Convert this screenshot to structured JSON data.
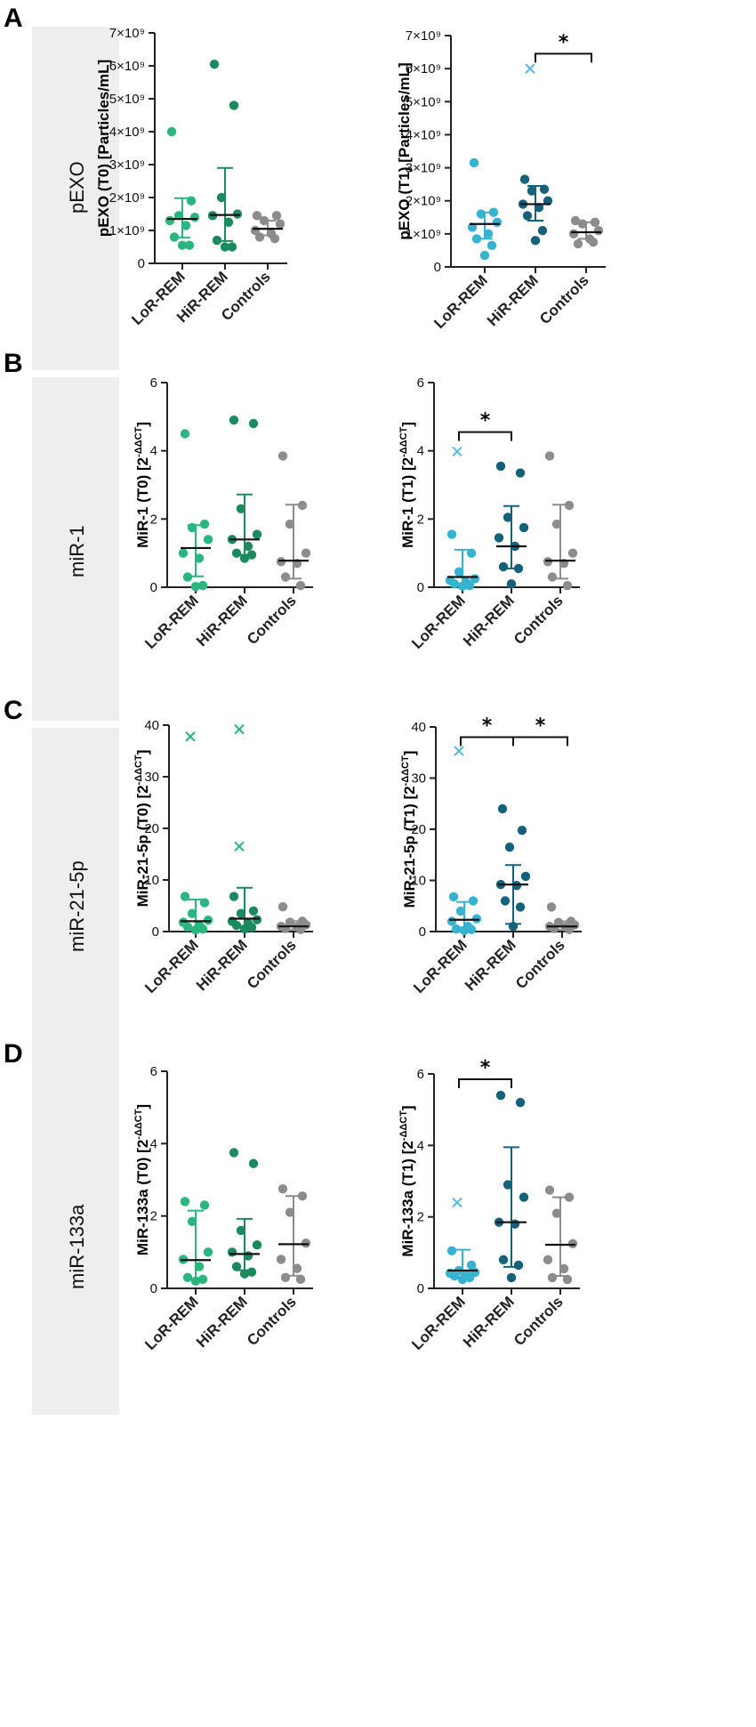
{
  "panels": [
    {
      "letter": "A",
      "row_label": "pEXO"
    },
    {
      "letter": "B",
      "row_label": "miR-1"
    },
    {
      "letter": "C",
      "row_label": "miR-21-5p"
    },
    {
      "letter": "D",
      "row_label": "miR-133a"
    }
  ],
  "colors": {
    "lor_t0": "#2bb67f",
    "hir_t0": "#1c8a5e",
    "lor_t1": "#37b3cf",
    "hir_t1": "#16617a",
    "controls": "#8c8c8c",
    "outlier_t0": "#2bb67f",
    "outlier_t1": "#58b8e0"
  },
  "chart_data": [
    {
      "id": "A-T0",
      "type": "scatter",
      "title": "",
      "ylabel": "pEXO (T0) [Particles/mL]",
      "categories": [
        "LoR-REM",
        "HiR-REM",
        "Controls"
      ],
      "ylim": [
        0,
        7000000000.0
      ],
      "yticks": [
        0,
        1000000000.0,
        2000000000.0,
        3000000000.0,
        4000000000.0,
        5000000000.0,
        6000000000.0,
        7000000000.0
      ],
      "ytick_labels": [
        "0",
        "1×10⁹",
        "2×10⁹",
        "3×10⁹",
        "4×10⁹",
        "5×10⁹",
        "6×10⁹",
        "7×10⁹"
      ],
      "groups": [
        {
          "name": "LoR-REM",
          "color_key": "lor_t0",
          "median": 1350000000.0,
          "q1": 780000000.0,
          "q3": 1980000000.0,
          "points": [
            4000000000.0,
            1900000000.0,
            1450000000.0,
            1400000000.0,
            1300000000.0,
            1150000000.0,
            800000000.0,
            550000000.0,
            550000000.0
          ],
          "outliers": []
        },
        {
          "name": "HiR-REM",
          "color_key": "hir_t0",
          "median": 1470000000.0,
          "q1": 680000000.0,
          "q3": 2900000000.0,
          "points": [
            6050000000.0,
            4800000000.0,
            2000000000.0,
            1500000000.0,
            1450000000.0,
            1250000000.0,
            700000000.0,
            500000000.0,
            500000000.0
          ],
          "outliers": []
        },
        {
          "name": "Controls",
          "color_key": "controls",
          "median": 1050000000.0,
          "q1": 850000000.0,
          "q3": 1300000000.0,
          "points": [
            1450000000.0,
            1450000000.0,
            1300000000.0,
            1200000000.0,
            1000000000.0,
            900000000.0,
            800000000.0,
            750000000.0
          ],
          "outliers": []
        }
      ],
      "significance": []
    },
    {
      "id": "A-T1",
      "type": "scatter",
      "title": "",
      "ylabel": "pEXO (T1) [Particles/mL]",
      "categories": [
        "LoR-REM",
        "HiR-REM",
        "Controls"
      ],
      "ylim": [
        0,
        7000000000.0
      ],
      "yticks": [
        0,
        1000000000.0,
        2000000000.0,
        3000000000.0,
        4000000000.0,
        5000000000.0,
        6000000000.0,
        7000000000.0
      ],
      "ytick_labels": [
        "0",
        "1×10⁹",
        "2×10⁹",
        "3×10⁹",
        "4×10⁹",
        "5×10⁹",
        "6×10⁹",
        "7×10⁹"
      ],
      "groups": [
        {
          "name": "LoR-REM",
          "color_key": "lor_t1",
          "median": 1300000000.0,
          "q1": 850000000.0,
          "q3": 1650000000.0,
          "points": [
            3150000000.0,
            1650000000.0,
            1600000000.0,
            1350000000.0,
            1200000000.0,
            1000000000.0,
            850000000.0,
            650000000.0,
            350000000.0
          ],
          "outliers": []
        },
        {
          "name": "HiR-REM",
          "color_key": "hir_t1",
          "median": 1900000000.0,
          "q1": 1400000000.0,
          "q3": 2450000000.0,
          "points": [
            2650000000.0,
            2350000000.0,
            2300000000.0,
            2000000000.0,
            1900000000.0,
            1800000000.0,
            1550000000.0,
            1100000000.0,
            800000000.0
          ],
          "outliers": [
            {
              "value": 6000000000.0,
              "color_key": "outlier_t1"
            }
          ]
        },
        {
          "name": "Controls",
          "color_key": "controls",
          "median": 1050000000.0,
          "q1": 850000000.0,
          "q3": 1350000000.0,
          "points": [
            1400000000.0,
            1350000000.0,
            1300000000.0,
            1100000000.0,
            1000000000.0,
            850000000.0,
            700000000.0,
            750000000.0
          ],
          "outliers": []
        }
      ],
      "significance": [
        {
          "from": "HiR-REM",
          "to": "Controls",
          "y": 6450000000.0,
          "label": "*"
        }
      ]
    },
    {
      "id": "B-T0",
      "type": "scatter",
      "title": "",
      "ylabel": "MiR-1 (T0) [2",
      "ylabel_sup": "-ΔΔCT",
      "ylabel_end": "]",
      "categories": [
        "LoR-REM",
        "HiR-REM",
        "Controls"
      ],
      "ylim": [
        0,
        6
      ],
      "yticks": [
        0,
        2,
        4,
        6
      ],
      "ytick_labels": [
        "0",
        "2",
        "4",
        "6"
      ],
      "groups": [
        {
          "name": "LoR-REM",
          "color_key": "lor_t0",
          "median": 1.15,
          "q1": 0.32,
          "q3": 1.82,
          "points": [
            4.5,
            1.85,
            1.75,
            1.4,
            1.0,
            0.85,
            0.3,
            0.05,
            0.02
          ],
          "outliers": []
        },
        {
          "name": "HiR-REM",
          "color_key": "hir_t0",
          "median": 1.4,
          "q1": 0.95,
          "q3": 2.72,
          "points": [
            4.9,
            4.8,
            2.3,
            1.55,
            1.4,
            1.2,
            1.0,
            0.95,
            0.85
          ],
          "outliers": []
        },
        {
          "name": "Controls",
          "color_key": "controls",
          "median": 0.78,
          "q1": 0.25,
          "q3": 2.42,
          "points": [
            3.85,
            2.4,
            1.85,
            1.0,
            0.75,
            0.7,
            0.3,
            0.05
          ],
          "outliers": []
        }
      ],
      "significance": []
    },
    {
      "id": "B-T1",
      "type": "scatter",
      "title": "",
      "ylabel": "MiR-1 (T1) [2",
      "ylabel_sup": "-ΔΔCT",
      "ylabel_end": "]",
      "categories": [
        "LoR-REM",
        "HiR-REM",
        "Controls"
      ],
      "ylim": [
        0,
        6
      ],
      "yticks": [
        0,
        2,
        4,
        6
      ],
      "ytick_labels": [
        "0",
        "2",
        "4",
        "6"
      ],
      "groups": [
        {
          "name": "LoR-REM",
          "color_key": "lor_t1",
          "median": 0.3,
          "q1": 0.05,
          "q3": 1.1,
          "points": [
            1.55,
            1.0,
            0.45,
            0.25,
            0.2,
            0.15,
            0.1,
            0.05,
            0.03
          ],
          "outliers": [
            {
              "value": 3.98,
              "color_key": "outlier_t1"
            }
          ]
        },
        {
          "name": "HiR-REM",
          "color_key": "hir_t1",
          "median": 1.2,
          "q1": 0.55,
          "q3": 2.38,
          "points": [
            3.55,
            3.35,
            2.05,
            1.75,
            1.45,
            1.2,
            0.6,
            0.55,
            0.1
          ],
          "outliers": []
        },
        {
          "name": "Controls",
          "color_key": "controls",
          "median": 0.78,
          "q1": 0.25,
          "q3": 2.42,
          "points": [
            3.85,
            2.4,
            1.85,
            1.0,
            0.75,
            0.7,
            0.3,
            0.05
          ],
          "outliers": []
        }
      ],
      "significance": [
        {
          "from": "LoR-REM",
          "to": "HiR-REM",
          "y": 4.55,
          "label": "*"
        }
      ]
    },
    {
      "id": "C-T0",
      "type": "scatter",
      "title": "",
      "ylabel": "MiR-21-5p (T0) [2",
      "ylabel_sup": "-ΔΔCT",
      "ylabel_end": "]",
      "categories": [
        "LoR-REM",
        "HiR-REM",
        "Controls"
      ],
      "ylim": [
        0,
        40
      ],
      "yticks": [
        0,
        10,
        20,
        30,
        40
      ],
      "ytick_labels": [
        "0",
        "10",
        "20",
        "30",
        "40"
      ],
      "groups": [
        {
          "name": "LoR-REM",
          "color_key": "lor_t0",
          "median": 2.0,
          "q1": 0.5,
          "q3": 6.2,
          "points": [
            6.8,
            5.6,
            3.5,
            2.2,
            1.8,
            1.2,
            0.9,
            0.5,
            0.3
          ],
          "outliers": [
            {
              "value": 37.8,
              "color_key": "outlier_t0"
            }
          ]
        },
        {
          "name": "HiR-REM",
          "color_key": "hir_t0",
          "median": 2.5,
          "q1": 1.0,
          "q3": 8.5,
          "points": [
            6.8,
            4.0,
            3.5,
            2.3,
            2.0,
            1.6,
            1.2,
            0.8,
            0.5
          ],
          "outliers": [
            {
              "value": 39.2,
              "color_key": "outlier_t0"
            },
            {
              "value": 16.5,
              "color_key": "outlier_t0"
            }
          ]
        },
        {
          "name": "Controls",
          "color_key": "controls",
          "median": 1.0,
          "q1": 0.4,
          "q3": 2.0,
          "points": [
            4.8,
            2.0,
            1.8,
            1.3,
            1.0,
            0.9,
            0.6,
            0.4
          ],
          "outliers": []
        }
      ],
      "significance": []
    },
    {
      "id": "C-T1",
      "type": "scatter",
      "title": "",
      "ylabel": "MiR-21-5p (T1) [2",
      "ylabel_sup": "-ΔΔCT",
      "ylabel_end": "]",
      "categories": [
        "LoR-REM",
        "HiR-REM",
        "Controls"
      ],
      "ylim": [
        0,
        40
      ],
      "yticks": [
        0,
        10,
        20,
        30,
        40
      ],
      "ytick_labels": [
        "0",
        "10",
        "20",
        "30",
        "40"
      ],
      "groups": [
        {
          "name": "LoR-REM",
          "color_key": "lor_t1",
          "median": 2.3,
          "q1": 0.8,
          "q3": 5.8,
          "points": [
            6.8,
            6.0,
            4.0,
            2.5,
            2.0,
            1.0,
            0.5,
            0.4,
            0.2
          ],
          "outliers": [
            {
              "value": 35.3,
              "color_key": "outlier_t1"
            }
          ]
        },
        {
          "name": "HiR-REM",
          "color_key": "hir_t1",
          "median": 9.2,
          "q1": 1.5,
          "q3": 13.0,
          "points": [
            24.0,
            19.8,
            16.5,
            10.8,
            9.2,
            9.0,
            6.0,
            4.8,
            1.0
          ],
          "outliers": []
        },
        {
          "name": "Controls",
          "color_key": "controls",
          "median": 1.0,
          "q1": 0.4,
          "q3": 2.0,
          "points": [
            4.8,
            2.0,
            1.8,
            1.3,
            1.0,
            0.9,
            0.6,
            0.4
          ],
          "outliers": []
        }
      ],
      "significance": [
        {
          "from": "LoR-REM",
          "to": "HiR-REM",
          "y": 38.0,
          "label": "*"
        },
        {
          "from": "HiR-REM",
          "to": "Controls",
          "y": 38.0,
          "label": "*"
        }
      ]
    },
    {
      "id": "D-T0",
      "type": "scatter",
      "title": "",
      "ylabel": "MiR-133a (T0) [2",
      "ylabel_sup": "-ΔΔCT",
      "ylabel_end": "]",
      "categories": [
        "LoR-REM",
        "HiR-REM",
        "Controls"
      ],
      "ylim": [
        0,
        6
      ],
      "yticks": [
        0,
        2,
        4,
        6
      ],
      "ytick_labels": [
        "0",
        "2",
        "4",
        "6"
      ],
      "groups": [
        {
          "name": "LoR-REM",
          "color_key": "lor_t0",
          "median": 0.78,
          "q1": 0.25,
          "q3": 2.15,
          "points": [
            2.4,
            2.3,
            1.85,
            1.0,
            0.8,
            0.6,
            0.3,
            0.25,
            0.2
          ],
          "outliers": []
        },
        {
          "name": "HiR-REM",
          "color_key": "hir_t0",
          "median": 0.95,
          "q1": 0.5,
          "q3": 1.92,
          "points": [
            3.75,
            3.45,
            1.6,
            1.2,
            1.0,
            0.9,
            0.6,
            0.45,
            0.4
          ],
          "outliers": []
        },
        {
          "name": "Controls",
          "color_key": "controls",
          "median": 1.22,
          "q1": 0.35,
          "q3": 2.55,
          "points": [
            2.75,
            2.55,
            2.1,
            1.25,
            0.8,
            0.55,
            0.3,
            0.25
          ],
          "outliers": []
        }
      ],
      "significance": []
    },
    {
      "id": "D-T1",
      "type": "scatter",
      "title": "",
      "ylabel": "MiR-133a (T1) [2",
      "ylabel_sup": "-ΔΔCT",
      "ylabel_end": "]",
      "categories": [
        "LoR-REM",
        "HiR-REM",
        "Controls"
      ],
      "ylim": [
        0,
        6
      ],
      "yticks": [
        0,
        2,
        4,
        6
      ],
      "ytick_labels": [
        "0",
        "2",
        "4",
        "6"
      ],
      "groups": [
        {
          "name": "LoR-REM",
          "color_key": "lor_t1",
          "median": 0.5,
          "q1": 0.28,
          "q3": 1.08,
          "points": [
            1.05,
            0.65,
            0.5,
            0.45,
            0.42,
            0.4,
            0.35,
            0.3,
            0.25
          ],
          "outliers": [
            {
              "value": 2.4,
              "color_key": "outlier_t1"
            }
          ]
        },
        {
          "name": "HiR-REM",
          "color_key": "hir_t1",
          "median": 1.85,
          "q1": 0.6,
          "q3": 3.95,
          "points": [
            5.4,
            5.2,
            2.9,
            2.55,
            1.85,
            1.8,
            0.8,
            0.65,
            0.3
          ],
          "outliers": []
        },
        {
          "name": "Controls",
          "color_key": "controls",
          "median": 1.22,
          "q1": 0.35,
          "q3": 2.55,
          "points": [
            2.75,
            2.55,
            2.1,
            1.25,
            0.8,
            0.55,
            0.3,
            0.25
          ],
          "outliers": []
        }
      ],
      "significance": [
        {
          "from": "LoR-REM",
          "to": "HiR-REM",
          "y": 5.85,
          "label": "*"
        }
      ]
    }
  ]
}
